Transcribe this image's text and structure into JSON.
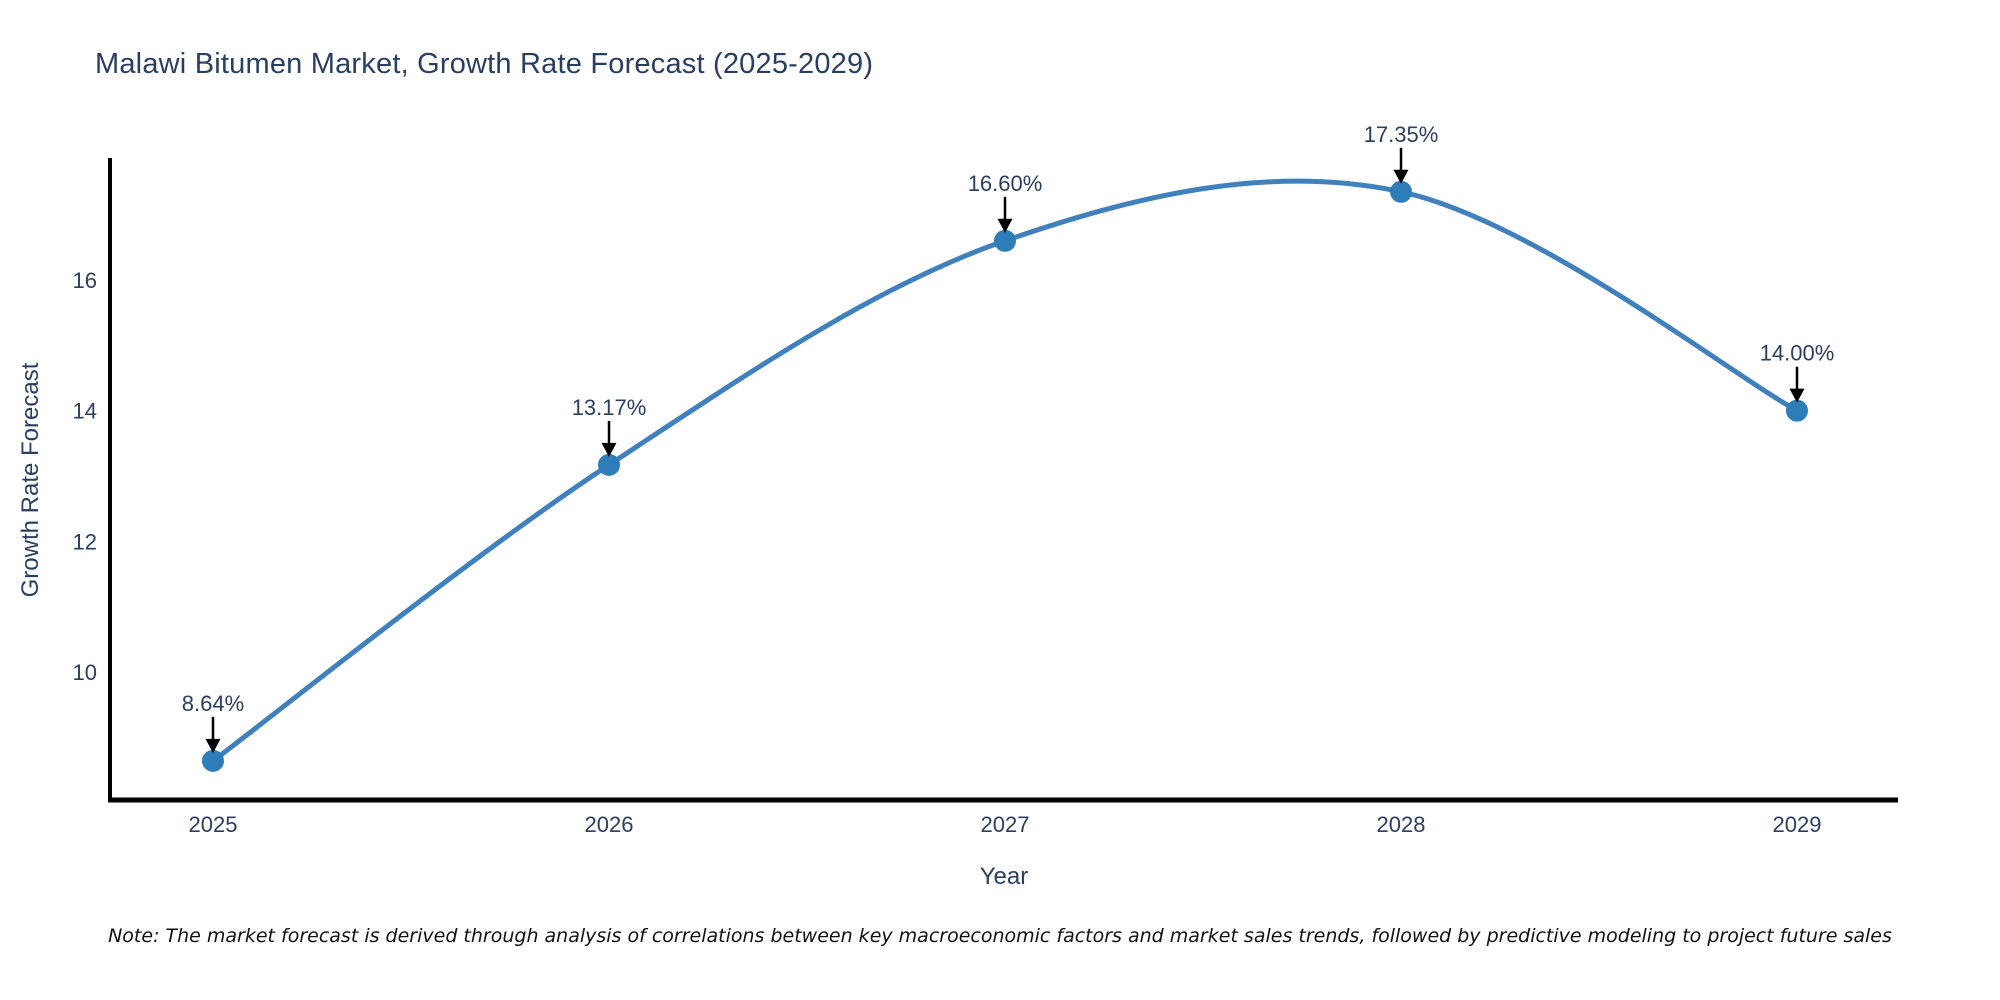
{
  "page": {
    "title": "Malawi Bitumen Market, Growth Rate Forecast (2025-2029)",
    "note": "Note: The market forecast is derived through analysis of correlations between key macroeconomic factors and market sales trends, followed by predictive modeling to project future sales"
  },
  "chart_data": {
    "type": "line",
    "title": "Malawi Bitumen Market, Growth Rate Forecast (2025-2029)",
    "x": [
      2025,
      2026,
      2027,
      2028,
      2029
    ],
    "series": [
      {
        "name": "Growth Rate Forecast",
        "values": [
          8.64,
          13.17,
          16.6,
          17.35,
          14.0
        ]
      }
    ],
    "point_labels": [
      "8.64%",
      "13.17%",
      "16.60%",
      "17.35%",
      "14.00%"
    ],
    "xlabel": "Year",
    "ylabel": "Growth Rate Forecast",
    "yticks": [
      10,
      12,
      14,
      16
    ],
    "ylim": [
      8.0,
      17.9
    ],
    "xlim": [
      2024.74,
      2029.26
    ],
    "line_shape": "spline",
    "grid": false,
    "legend_visible": false,
    "markers": true,
    "annotations": "value labels with down arrows above each point",
    "colors": {
      "line": "#4080bd",
      "marker": "#2e7cb8",
      "text": "#2a3f5f",
      "axis": "#000000",
      "arrow": "#000000",
      "background": "#ffffff"
    }
  }
}
